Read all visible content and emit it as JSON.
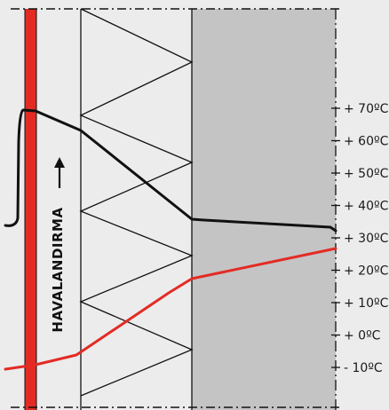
{
  "diagram": {
    "ventilation_label": "HAVALANDIRMA",
    "arrow_icon": "up-arrow-icon",
    "colors": {
      "background": "#ececec",
      "red_layer": "#e32b24",
      "grey_layer": "#c4c4c4",
      "temperature_line": "#111111",
      "dew_point_line": "#e32b24"
    }
  },
  "chart_data": {
    "type": "line",
    "title": "",
    "xlabel": "",
    "ylabel": "",
    "ylim": [
      -10,
      70
    ],
    "ticks": [
      {
        "value": 70,
        "label": "+ 70ºC"
      },
      {
        "value": 60,
        "label": "+ 60ºC"
      },
      {
        "value": 50,
        "label": "+ 50ºC"
      },
      {
        "value": 40,
        "label": "+ 40ºC"
      },
      {
        "value": 30,
        "label": "+ 30ºC"
      },
      {
        "value": 20,
        "label": "+ 20ºC"
      },
      {
        "value": 10,
        "label": "+ 10ºC"
      },
      {
        "value": 0,
        "label": "+  0ºC"
      },
      {
        "value": -10,
        "label": "- 10ºC"
      }
    ]
  }
}
